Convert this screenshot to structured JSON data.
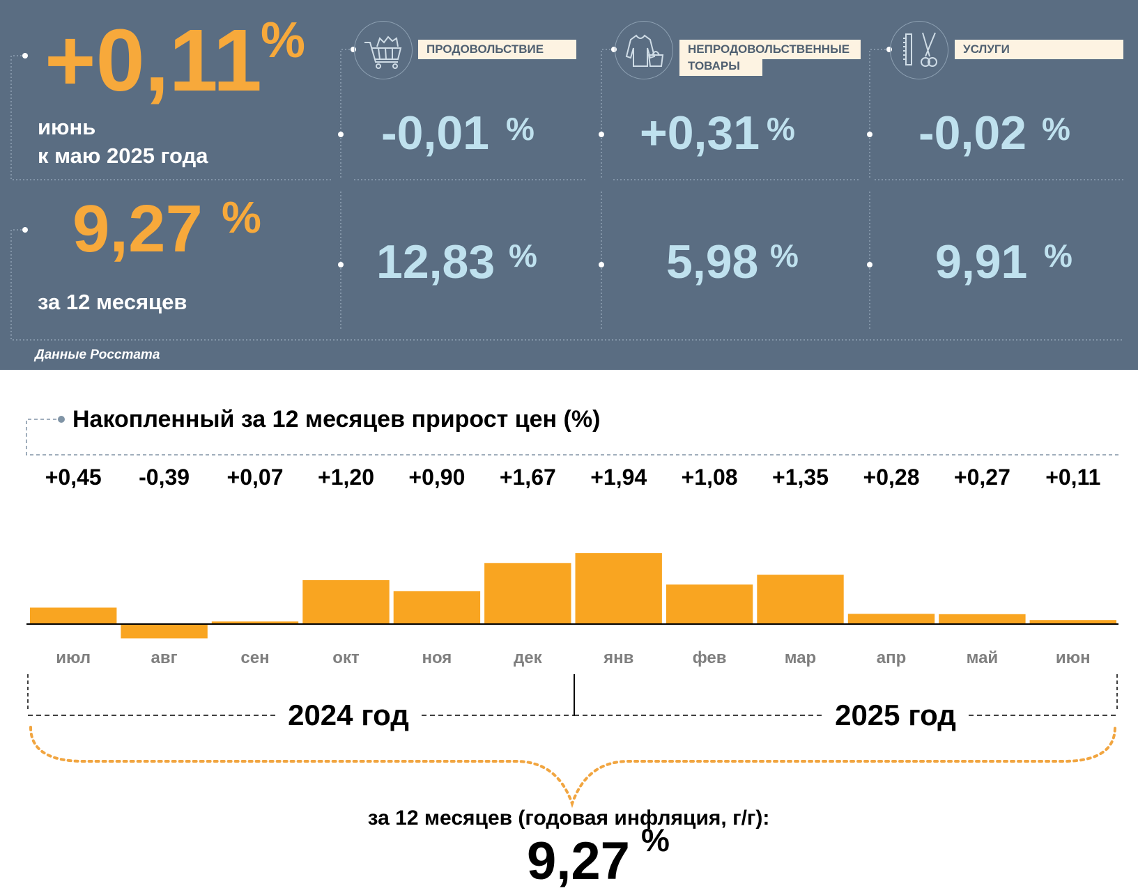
{
  "summary": {
    "monthly": {
      "value": "+0,11",
      "unit": "%",
      "label_line1": "июнь",
      "label_line2": "к маю 2025 года"
    },
    "annual": {
      "value": "9,27",
      "unit": "%",
      "label": "за 12 месяцев"
    },
    "source": "Данные Росстата"
  },
  "categories": [
    {
      "label_line1": "ПРОДОВОЛЬСТВИЕ",
      "label_line2": "",
      "icon": "shopping-cart-icon",
      "monthly": "-0,01",
      "annual": "12,83",
      "unit": "%"
    },
    {
      "label_line1": "НЕПРОДОВОЛЬСТВЕННЫЕ",
      "label_line2": "ТОВАРЫ",
      "icon": "clothing-icon",
      "monthly": "+0,31",
      "annual": "5,98",
      "unit": "%"
    },
    {
      "label_line1": "УСЛУГИ",
      "label_line2": "",
      "icon": "scissors-comb-icon",
      "monthly": "-0,02",
      "annual": "9,91",
      "unit": "%"
    }
  ],
  "chart_data": {
    "type": "bar",
    "title": "Накопленный за 12 месяцев прирост цен (%)",
    "categories": [
      "июл",
      "авг",
      "сен",
      "окт",
      "ноя",
      "дек",
      "янв",
      "фев",
      "мар",
      "апр",
      "май",
      "июн"
    ],
    "values": [
      0.45,
      -0.39,
      0.07,
      1.2,
      0.9,
      1.67,
      1.94,
      1.08,
      1.35,
      0.28,
      0.27,
      0.11
    ],
    "value_labels": [
      "+0,45",
      "-0,39",
      "+0,07",
      "+1,20",
      "+0,90",
      "+1,67",
      "+1,94",
      "+1,08",
      "+1,35",
      "+0,28",
      "+0,27",
      "+0,11"
    ],
    "year_groups": [
      {
        "label": "2024 год",
        "months": 6
      },
      {
        "label": "2025 год",
        "months": 6
      }
    ],
    "total_label": "за 12 месяцев (годовая инфляция, г/г):",
    "total_value": "9,27",
    "total_unit": "%",
    "bar_color": "#f9a521"
  },
  "colors": {
    "panel_bg": "#5a6d82",
    "accent_orange": "#f7a93b",
    "light_blue": "#bfe1ee",
    "label_bg": "#fdf3e2"
  }
}
